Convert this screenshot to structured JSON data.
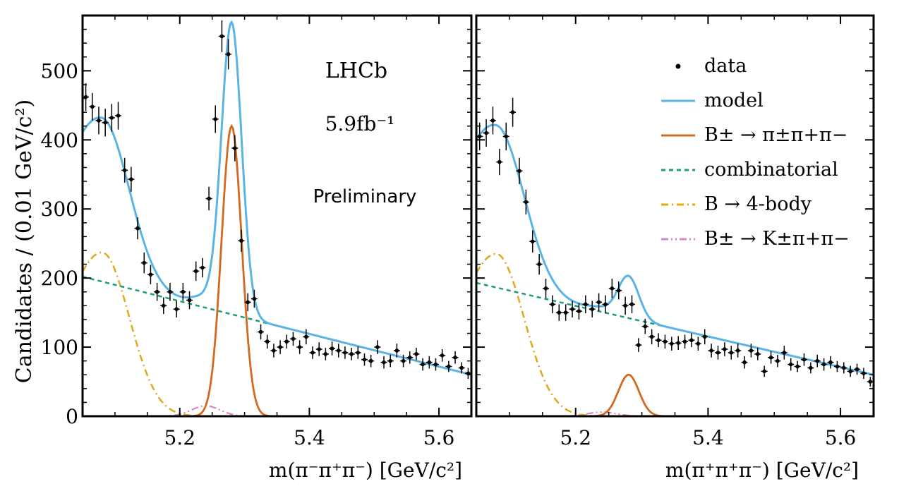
{
  "figure": {
    "ylabel": "Candidates / (0.01 GeV/c²)",
    "lhcb_label": "LHCb",
    "lumi_label": "5.9fb⁻¹",
    "preliminary_label": "Preliminary"
  },
  "legend": {
    "placement": "top-right of right panel",
    "entries": [
      {
        "label": "data",
        "color": "#000000",
        "style": "marker"
      },
      {
        "label": "model",
        "color": "#5ab4e3",
        "style": "solid"
      },
      {
        "label": "B± → π±π+π−",
        "color": "#d2691e",
        "style": "solid"
      },
      {
        "label": "combinatorial",
        "color": "#1a9e77",
        "style": "dashed"
      },
      {
        "label": "B → 4-body",
        "color": "#e0a81c",
        "style": "dashdot"
      },
      {
        "label": "B± → K±π+π−",
        "color": "#d987c0",
        "style": "dashdotdot"
      }
    ]
  },
  "chart_data": [
    {
      "type": "scatter",
      "panel": "left",
      "xlabel": "m(π⁻π⁺π⁻) [GeV/c²]",
      "ylabel": "Candidates / (0.01 GeV/c²)",
      "xlim": [
        5.05,
        5.65
      ],
      "ylim": [
        0,
        580
      ],
      "xticks": [
        5.2,
        5.4,
        5.6
      ],
      "yticks": [
        0,
        100,
        200,
        300,
        400,
        500
      ],
      "grid": false,
      "series": [
        {
          "name": "data",
          "style": "errorbar",
          "x": [
            5.055,
            5.065,
            5.075,
            5.085,
            5.095,
            5.105,
            5.115,
            5.125,
            5.135,
            5.145,
            5.155,
            5.165,
            5.175,
            5.185,
            5.195,
            5.205,
            5.215,
            5.225,
            5.235,
            5.245,
            5.255,
            5.265,
            5.275,
            5.285,
            5.295,
            5.305,
            5.315,
            5.325,
            5.335,
            5.345,
            5.355,
            5.365,
            5.375,
            5.385,
            5.395,
            5.405,
            5.415,
            5.425,
            5.435,
            5.445,
            5.455,
            5.465,
            5.475,
            5.485,
            5.495,
            5.505,
            5.515,
            5.525,
            5.535,
            5.545,
            5.555,
            5.565,
            5.575,
            5.585,
            5.595,
            5.605,
            5.615,
            5.625,
            5.635,
            5.645
          ],
          "y": [
            462,
            448,
            428,
            425,
            432,
            435,
            356,
            343,
            272,
            222,
            205,
            180,
            160,
            180,
            155,
            180,
            168,
            210,
            215,
            315,
            430,
            550,
            524,
            388,
            254,
            165,
            170,
            122,
            108,
            95,
            100,
            108,
            112,
            100,
            115,
            92,
            97,
            90,
            98,
            95,
            92,
            90,
            92,
            82,
            80,
            100,
            78,
            80,
            95,
            80,
            85,
            90,
            75,
            78,
            75,
            88,
            72,
            85,
            70,
            62
          ],
          "yerr": [
            20,
            20,
            20,
            20,
            20,
            20,
            18,
            18,
            16,
            15,
            14,
            13,
            12,
            13,
            12,
            13,
            13,
            14,
            14,
            17,
            20,
            23,
            22,
            19,
            16,
            13,
            13,
            11,
            10,
            10,
            10,
            10,
            10,
            10,
            11,
            9,
            10,
            9,
            10,
            10,
            9,
            9,
            9,
            9,
            9,
            10,
            9,
            9,
            10,
            9,
            9,
            9,
            9,
            9,
            9,
            9,
            8,
            9,
            8,
            8
          ]
        },
        {
          "name": "model",
          "style": "solid",
          "x": "model"
        },
        {
          "name": "B± → π±π+π−",
          "style": "solid",
          "peak_x": 5.28,
          "peak_y": 420
        },
        {
          "name": "combinatorial",
          "style": "dashed",
          "x": [
            5.05,
            5.65
          ],
          "y": [
            202,
            60
          ]
        },
        {
          "name": "B → 4-body",
          "style": "dashdot",
          "peak_x": 5.08,
          "peak_y": 237
        },
        {
          "name": "B± → K±π+π−",
          "style": "dashdotdot",
          "peak_x": 5.24,
          "peak_y": 15
        }
      ]
    },
    {
      "type": "scatter",
      "panel": "right",
      "xlabel": "m(π⁺π⁺π⁻) [GeV/c²]",
      "ylabel": "",
      "xlim": [
        5.05,
        5.65
      ],
      "ylim": [
        0,
        580
      ],
      "xticks": [
        5.2,
        5.4,
        5.6
      ],
      "yticks": [
        0,
        100,
        200,
        300,
        400,
        500
      ],
      "grid": false,
      "series": [
        {
          "name": "data",
          "style": "errorbar",
          "x": [
            5.055,
            5.065,
            5.075,
            5.085,
            5.095,
            5.105,
            5.115,
            5.125,
            5.135,
            5.145,
            5.155,
            5.165,
            5.175,
            5.185,
            5.195,
            5.205,
            5.215,
            5.225,
            5.235,
            5.245,
            5.255,
            5.265,
            5.275,
            5.285,
            5.295,
            5.305,
            5.315,
            5.325,
            5.335,
            5.345,
            5.355,
            5.365,
            5.375,
            5.385,
            5.395,
            5.405,
            5.415,
            5.425,
            5.435,
            5.445,
            5.455,
            5.465,
            5.475,
            5.485,
            5.495,
            5.505,
            5.515,
            5.525,
            5.535,
            5.545,
            5.555,
            5.565,
            5.575,
            5.585,
            5.595,
            5.605,
            5.615,
            5.625,
            5.635,
            5.645
          ],
          "y": [
            405,
            410,
            428,
            368,
            405,
            440,
            355,
            310,
            253,
            220,
            185,
            162,
            150,
            150,
            155,
            152,
            162,
            155,
            165,
            162,
            185,
            182,
            160,
            162,
            103,
            130,
            115,
            110,
            108,
            105,
            106,
            108,
            110,
            105,
            115,
            95,
            92,
            97,
            92,
            95,
            78,
            95,
            90,
            65,
            85,
            80,
            92,
            75,
            72,
            82,
            70,
            80,
            75,
            78,
            72,
            70,
            65,
            68,
            62,
            50
          ],
          "yerr": [
            20,
            20,
            20,
            19,
            20,
            21,
            19,
            18,
            16,
            15,
            14,
            13,
            12,
            12,
            12,
            12,
            13,
            12,
            13,
            13,
            14,
            13,
            13,
            13,
            10,
            11,
            11,
            10,
            10,
            10,
            10,
            10,
            10,
            10,
            11,
            10,
            10,
            10,
            10,
            10,
            9,
            10,
            9,
            8,
            9,
            9,
            10,
            9,
            8,
            9,
            8,
            9,
            9,
            9,
            8,
            8,
            8,
            8,
            8,
            7
          ]
        },
        {
          "name": "model",
          "style": "solid",
          "x": "model"
        },
        {
          "name": "B± → π±π+π−",
          "style": "solid",
          "peak_x": 5.28,
          "peak_y": 60
        },
        {
          "name": "combinatorial",
          "style": "dashed",
          "x": [
            5.05,
            5.65
          ],
          "y": [
            193,
            60
          ]
        },
        {
          "name": "B → 4-body",
          "style": "dashdot",
          "peak_x": 5.08,
          "peak_y": 235
        },
        {
          "name": "B± → K±π+π−",
          "style": "dashdotdot",
          "peak_x": 5.24,
          "peak_y": 6
        }
      ]
    }
  ]
}
